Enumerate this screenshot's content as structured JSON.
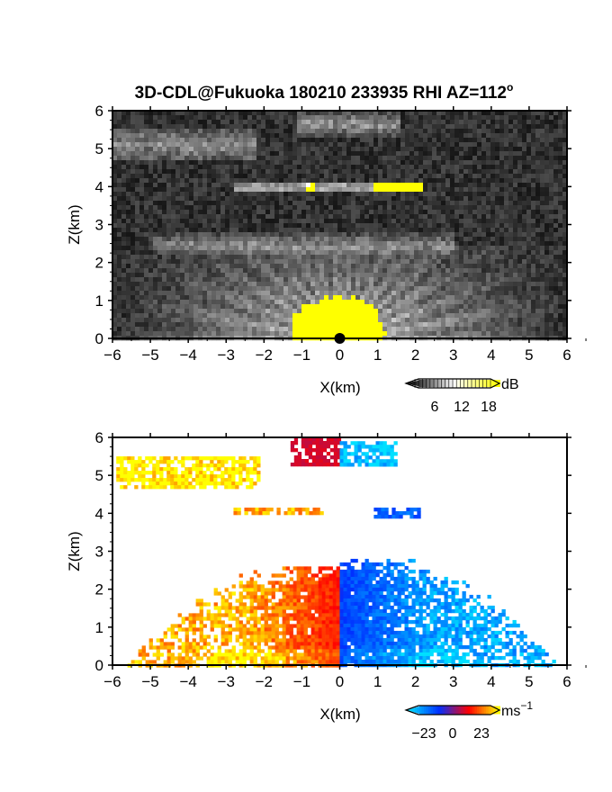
{
  "title_main": "3D-CDL@Fukuoka 180210 233935 RHI AZ=112",
  "title_deg": "o",
  "chart_data": [
    {
      "type": "heatmap",
      "quantity": "reflectivity",
      "xlabel": "X(km)",
      "ylabel": "Z(km)",
      "xlim": [
        -6,
        6
      ],
      "ylim": [
        0,
        6
      ],
      "xticks": [
        "-6",
        "-5",
        "-4",
        "-3",
        "-2",
        "-1",
        "0",
        "1",
        "2",
        "3",
        "4",
        "5",
        "6"
      ],
      "yticks": [
        "0",
        "1",
        "2",
        "3",
        "4",
        "5",
        "6"
      ],
      "colorbar": {
        "unit": "dB",
        "ticks": [
          "6",
          "12",
          "18"
        ],
        "range": [
          0,
          20
        ],
        "colors": [
          "#000000",
          "#ffffff",
          "#ffff00"
        ]
      },
      "features": [
        {
          "name": "near-ground clutter (saturated)",
          "x": [
            -1.5,
            1.2
          ],
          "z": [
            0,
            1.3
          ],
          "value": 20
        },
        {
          "name": "radial beam fan",
          "x": [
            -6,
            6
          ],
          "z": [
            0,
            2.5
          ],
          "value": 10
        },
        {
          "name": "layer ~2.5 km",
          "x": [
            -5,
            3
          ],
          "z": [
            2.3,
            2.8
          ],
          "value": 7
        },
        {
          "name": "layer ~4.05 km",
          "x": [
            -2.9,
            2.1
          ],
          "z": [
            3.95,
            4.15
          ],
          "value": 16
        },
        {
          "name": "cloud ~5 km",
          "x": [
            -6,
            -2.2
          ],
          "z": [
            4.7,
            5.6
          ],
          "value": 8
        },
        {
          "name": "cloud ~5.8 km",
          "x": [
            -1.2,
            1.5
          ],
          "z": [
            5.4,
            6
          ],
          "value": 9
        }
      ]
    },
    {
      "type": "heatmap",
      "quantity": "radial velocity",
      "xlabel": "X(km)",
      "ylabel": "Z(km)",
      "xlim": [
        -6,
        6
      ],
      "ylim": [
        0,
        6
      ],
      "xticks": [
        "-6",
        "-5",
        "-4",
        "-3",
        "-2",
        "-1",
        "0",
        "1",
        "2",
        "3",
        "4",
        "5",
        "6"
      ],
      "yticks": [
        "0",
        "1",
        "2",
        "3",
        "4",
        "5",
        "6"
      ],
      "colorbar": {
        "unit": "ms",
        "unit_exp": "-1",
        "ticks": [
          "-23",
          "0",
          "23"
        ],
        "range": [
          -23,
          23
        ],
        "colors": [
          "#00e0ff",
          "#0030ff",
          "#ff0000",
          "#ffff00"
        ]
      },
      "features": [
        {
          "name": "lower echo west",
          "x": [
            -5.7,
            0
          ],
          "z": [
            0,
            2.6
          ],
          "value": 15
        },
        {
          "name": "lower echo east",
          "x": [
            0,
            5.7
          ],
          "z": [
            0,
            2.8
          ],
          "value": -15
        },
        {
          "name": "layer 4 km west",
          "x": [
            -2.9,
            -0.5
          ],
          "z": [
            4.0,
            4.15
          ],
          "value": 18
        },
        {
          "name": "layer 4 km east",
          "x": [
            0.9,
            2.1
          ],
          "z": [
            3.95,
            4.15
          ],
          "value": -12
        },
        {
          "name": "cloud 5 km west",
          "x": [
            -5.9,
            -2.1
          ],
          "z": [
            4.7,
            5.5
          ],
          "value": 23
        },
        {
          "name": "cloud 5.8 km west",
          "x": [
            -1.3,
            0
          ],
          "z": [
            5.3,
            6
          ],
          "value": 5
        },
        {
          "name": "cloud 5.8 km east",
          "x": [
            0,
            1.5
          ],
          "z": [
            5.3,
            5.9
          ],
          "value": -20
        }
      ]
    }
  ]
}
